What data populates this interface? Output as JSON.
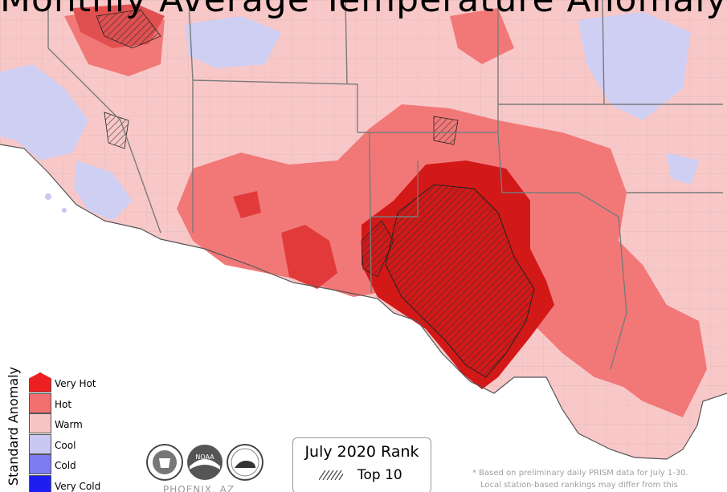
{
  "title": "Monthly Average Temperature Anomaly",
  "legend": {
    "axis_label": "Standard Anomaly",
    "items": [
      {
        "label": "Very Hot",
        "color": "#ec2020"
      },
      {
        "label": "Hot",
        "color": "#f07070"
      },
      {
        "label": "Warm",
        "color": "#f7c4c4"
      },
      {
        "label": "Cool",
        "color": "#c8c8f2"
      },
      {
        "label": "Cold",
        "color": "#7c7cf0"
      },
      {
        "label": "Very Cold",
        "color": "#1e1ef0"
      }
    ]
  },
  "rank_box": {
    "title": "July 2020 Rank",
    "item_label": "Top 10"
  },
  "office": "PHOENIX, AZ",
  "logos": [
    "doc-seal-icon",
    "noaa-logo-icon",
    "nws-logo-icon"
  ],
  "footnote": {
    "line1": "* Based on preliminary daily PRISM data for July 1-30.",
    "line2": "Local station-based rankings may differ from this"
  },
  "colors": {
    "background": "#fad4d4",
    "very_hot": "#d31818",
    "hot": "#f27878",
    "warm": "#f8c8c8",
    "cool": "#cfcff4",
    "borders": "#8a8a8a",
    "ocean": "#ffffff"
  }
}
